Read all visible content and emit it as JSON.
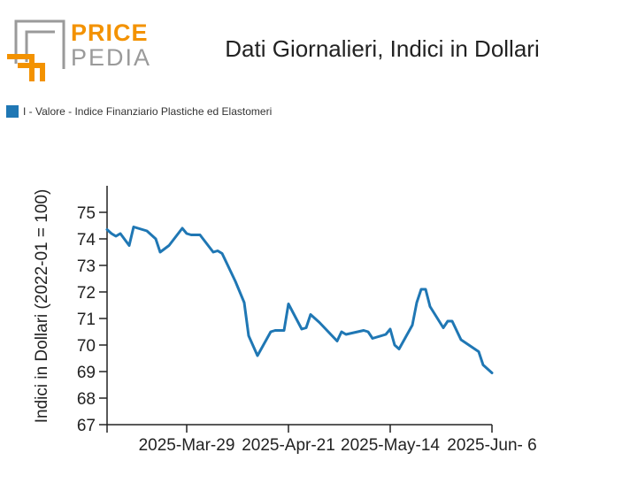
{
  "logo": {
    "line1": "PRICE",
    "line2": "PEDIA"
  },
  "colors": {
    "series": "#1f77b4",
    "logo_orange": "#f39200",
    "logo_gray": "#9a9a9a"
  },
  "chart_data": {
    "type": "line",
    "title": "Dati Giornalieri, Indici in Dollari",
    "ylabel": "Indici in Dollari (2022-01 = 100)",
    "xlabel": "",
    "ylim": [
      67,
      76
    ],
    "yticks": [
      67,
      68,
      69,
      70,
      71,
      72,
      73,
      74,
      75
    ],
    "xlim": [
      "2025-03-11",
      "2025-06-06"
    ],
    "xticks": [
      {
        "date": "2025-03-11",
        "label": ""
      },
      {
        "date": "2025-03-29",
        "label": "2025-Mar-29"
      },
      {
        "date": "2025-04-21",
        "label": "2025-Apr-21"
      },
      {
        "date": "2025-05-14",
        "label": "2025-May-14"
      },
      {
        "date": "2025-06-06",
        "label": "2025-Jun- 6"
      }
    ],
    "legend": {
      "position": "top-left"
    },
    "series": [
      {
        "name": "I - Valore - Indice Finanziario Plastiche ed Elastomeri",
        "x": [
          "2025-03-11",
          "2025-03-12",
          "2025-03-13",
          "2025-03-14",
          "2025-03-16",
          "2025-03-17",
          "2025-03-20",
          "2025-03-22",
          "2025-03-23",
          "2025-03-25",
          "2025-03-28",
          "2025-03-29",
          "2025-03-30",
          "2025-04-01",
          "2025-04-04",
          "2025-04-05",
          "2025-04-06",
          "2025-04-09",
          "2025-04-10",
          "2025-04-11",
          "2025-04-12",
          "2025-04-14",
          "2025-04-17",
          "2025-04-18",
          "2025-04-19",
          "2025-04-20",
          "2025-04-21",
          "2025-04-24",
          "2025-04-25",
          "2025-04-26",
          "2025-04-27",
          "2025-04-28",
          "2025-05-02",
          "2025-05-03",
          "2025-05-04",
          "2025-05-08",
          "2025-05-09",
          "2025-05-10",
          "2025-05-11",
          "2025-05-13",
          "2025-05-14",
          "2025-05-15",
          "2025-05-16",
          "2025-05-17",
          "2025-05-19",
          "2025-05-20",
          "2025-05-21",
          "2025-05-22",
          "2025-05-23",
          "2025-05-26",
          "2025-05-27",
          "2025-05-28",
          "2025-05-30",
          "2025-06-03",
          "2025-06-04",
          "2025-06-06"
        ],
        "y": [
          74.35,
          74.2,
          74.1,
          74.2,
          73.75,
          74.45,
          74.3,
          74.0,
          73.5,
          73.75,
          74.4,
          74.2,
          74.15,
          74.15,
          73.5,
          73.55,
          73.45,
          72.4,
          72.0,
          71.6,
          70.35,
          69.6,
          70.5,
          70.55,
          70.55,
          70.55,
          71.55,
          70.6,
          70.65,
          71.15,
          71.0,
          70.85,
          70.15,
          70.5,
          70.4,
          70.55,
          70.5,
          70.25,
          70.3,
          70.4,
          70.6,
          70.0,
          69.85,
          70.15,
          70.75,
          71.6,
          72.1,
          72.1,
          71.45,
          70.65,
          70.9,
          70.9,
          70.2,
          69.75,
          69.25,
          68.95
        ]
      }
    ]
  }
}
